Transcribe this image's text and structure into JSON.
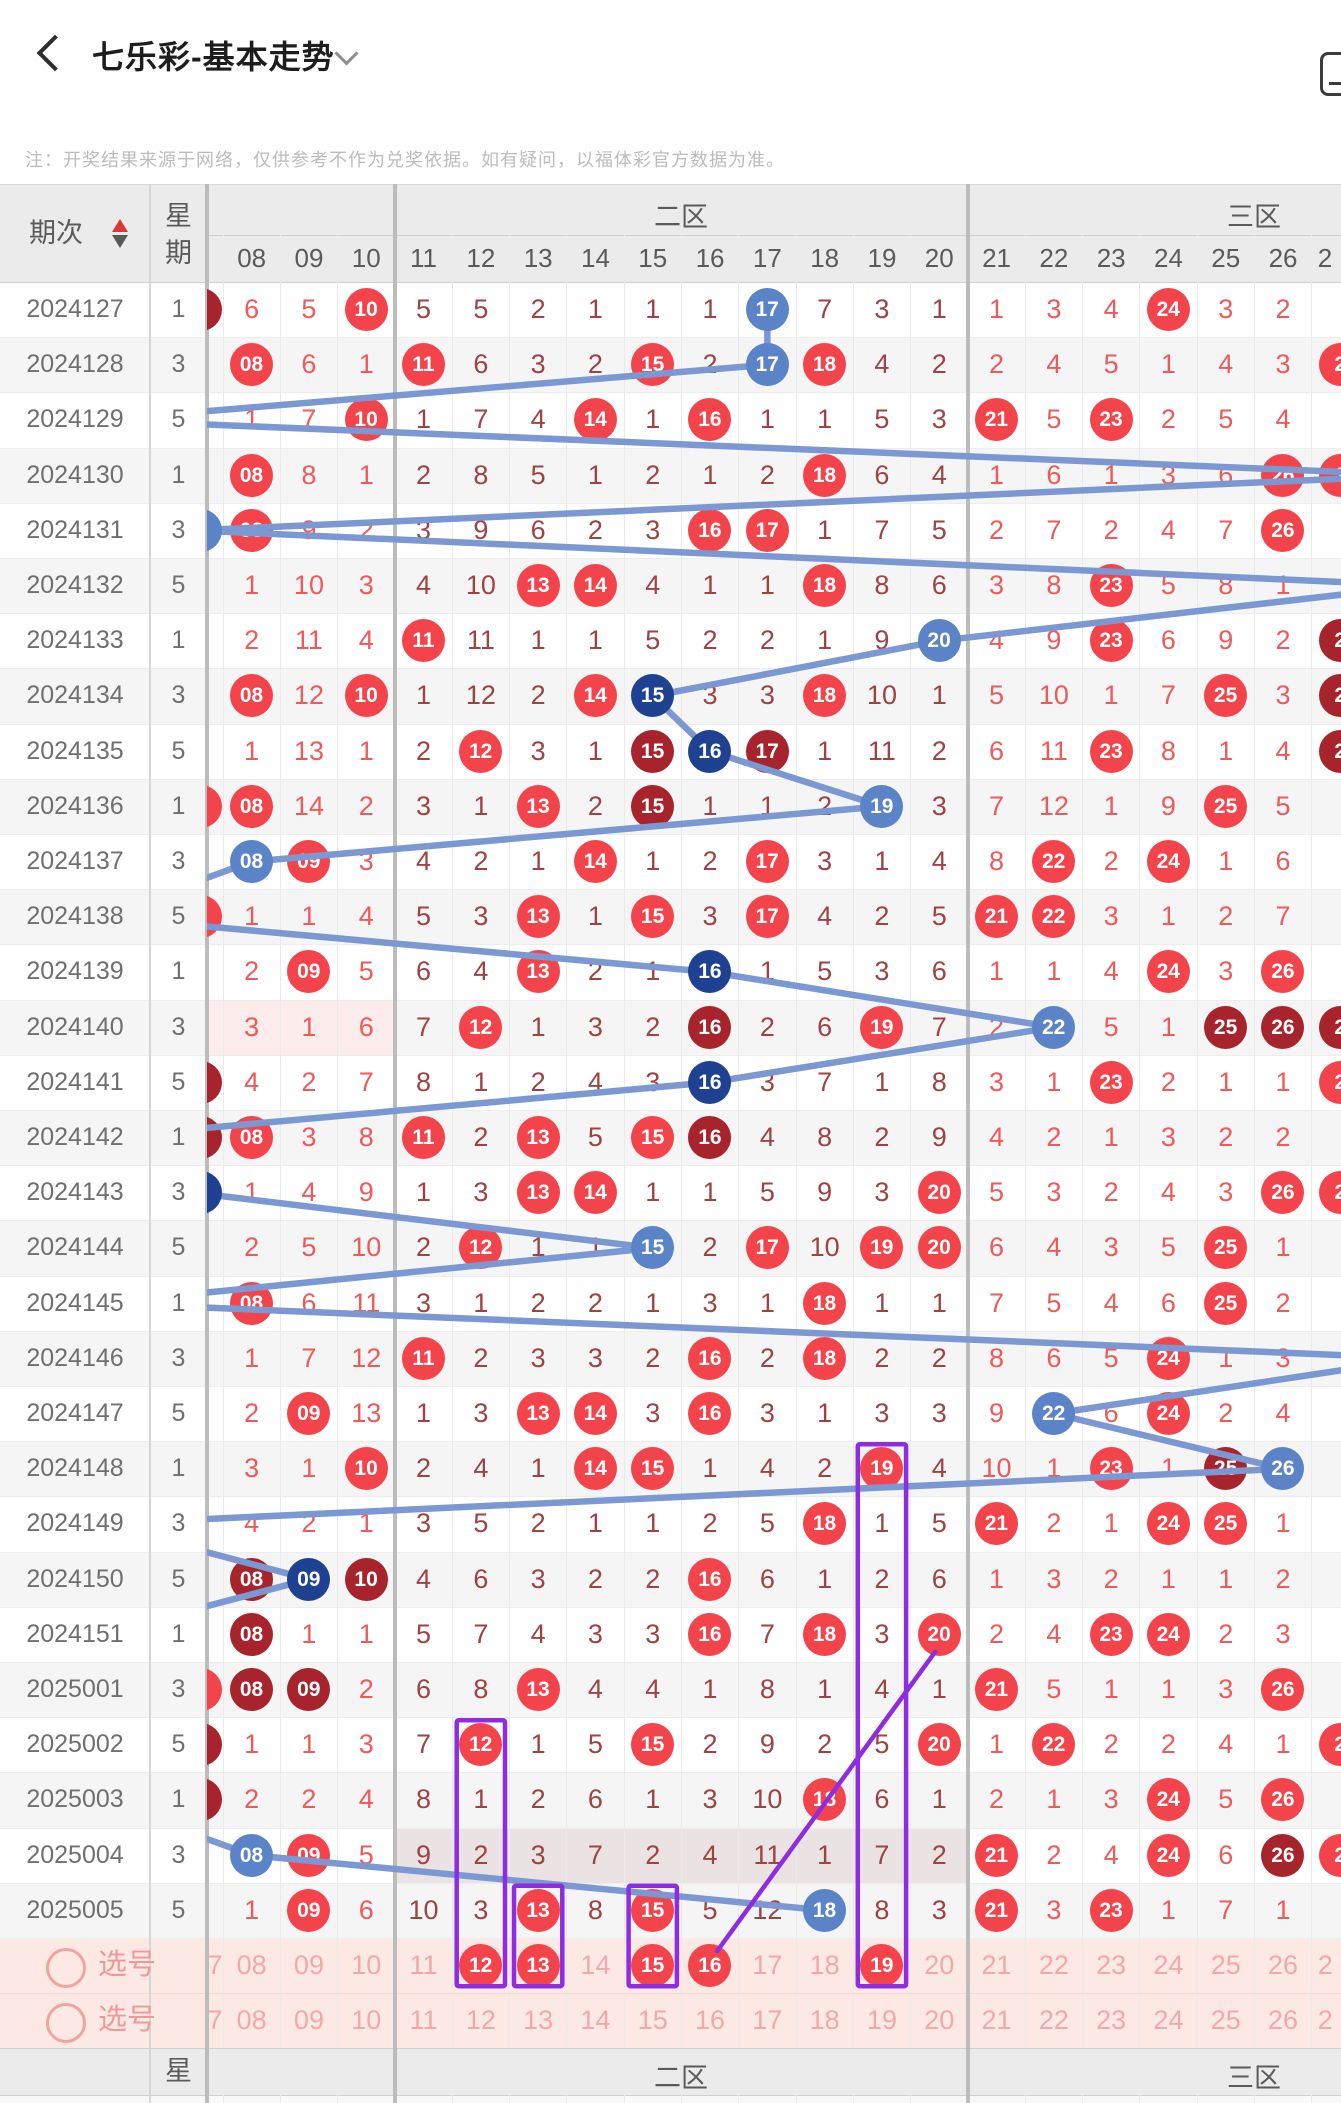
{
  "header": {
    "title": "七乐彩-基本走势",
    "back_icon": "chevron-left",
    "dropdown_icon": "chevron-down",
    "corner_icon": "panel-icon-clipped"
  },
  "note": "注：开奖结果来源于网络，仅供参考不作为兑奖依据。如有疑问，以福体彩官方数据为准。",
  "table": {
    "period_label": "期次",
    "week_label_top": "星",
    "week_label_bottom": "期",
    "zone2_label": "二区",
    "zone3_label": "三区",
    "columns": [
      "08",
      "09",
      "10",
      "11",
      "12",
      "13",
      "14",
      "15",
      "16",
      "17",
      "18",
      "19",
      "20",
      "21",
      "22",
      "23",
      "24",
      "25",
      "26"
    ],
    "clipped_column_label": "2",
    "clipped_left_pick_label": "7",
    "footer_partial_dash": "-",
    "rows": [
      {
        "p": "2024127",
        "w": "1",
        "l": "m",
        "r": "",
        "cells": [
          "6",
          "5",
          "r10",
          "5",
          "5",
          "2",
          "1",
          "1",
          "1",
          "b17",
          "7",
          "3",
          "1",
          "1",
          "3",
          "4",
          "r24",
          "3",
          "2"
        ]
      },
      {
        "p": "2024128",
        "w": "3",
        "l": "",
        "r": "r",
        "cells": [
          "r08",
          "6",
          "1",
          "r11",
          "6",
          "3",
          "2",
          "r15",
          "2",
          "b17",
          "r18",
          "4",
          "2",
          "2",
          "4",
          "5",
          "1",
          "4",
          "3"
        ]
      },
      {
        "p": "2024129",
        "w": "5",
        "l": "",
        "r": "",
        "cells": [
          "1",
          "7",
          "r10",
          "1",
          "7",
          "4",
          "r14",
          "1",
          "r16",
          "1",
          "1",
          "5",
          "3",
          "r21",
          "5",
          "r23",
          "2",
          "5",
          "4"
        ]
      },
      {
        "p": "2024130",
        "w": "1",
        "l": "",
        "r": "r",
        "cells": [
          "r08",
          "8",
          "1",
          "2",
          "8",
          "5",
          "1",
          "2",
          "1",
          "2",
          "r18",
          "6",
          "4",
          "1",
          "6",
          "1",
          "3",
          "6",
          "r26"
        ]
      },
      {
        "p": "2024131",
        "w": "3",
        "l": "b",
        "r": "",
        "cells": [
          "r08",
          "9",
          "2",
          "3",
          "9",
          "6",
          "2",
          "3",
          "r16",
          "r17",
          "1",
          "7",
          "5",
          "2",
          "7",
          "2",
          "4",
          "7",
          "r26"
        ]
      },
      {
        "p": "2024132",
        "w": "5",
        "l": "",
        "r": "",
        "cells": [
          "1",
          "10",
          "3",
          "4",
          "10",
          "r13",
          "r14",
          "4",
          "1",
          "1",
          "r18",
          "8",
          "6",
          "3",
          "8",
          "r23",
          "5",
          "8",
          "1"
        ]
      },
      {
        "p": "2024133",
        "w": "1",
        "l": "",
        "r": "m",
        "cells": [
          "2",
          "11",
          "4",
          "r11",
          "11",
          "1",
          "1",
          "5",
          "2",
          "2",
          "1",
          "9",
          "b20",
          "4",
          "9",
          "r23",
          "6",
          "9",
          "2"
        ]
      },
      {
        "p": "2024134",
        "w": "3",
        "l": "",
        "r": "m",
        "cells": [
          "r08",
          "12",
          "r10",
          "1",
          "12",
          "2",
          "r14",
          "n15",
          "3",
          "3",
          "r18",
          "10",
          "1",
          "5",
          "10",
          "1",
          "7",
          "r25",
          "3"
        ]
      },
      {
        "p": "2024135",
        "w": "5",
        "l": "",
        "r": "m",
        "cells": [
          "1",
          "13",
          "1",
          "2",
          "r12",
          "3",
          "1",
          "m15",
          "n16",
          "m17",
          "1",
          "11",
          "2",
          "6",
          "11",
          "r23",
          "8",
          "1",
          "4"
        ]
      },
      {
        "p": "2024136",
        "w": "1",
        "l": "r",
        "r": "",
        "cells": [
          "r08",
          "14",
          "2",
          "3",
          "1",
          "r13",
          "2",
          "m15",
          "1",
          "1",
          "2",
          "b19",
          "3",
          "7",
          "12",
          "1",
          "9",
          "r25",
          "5"
        ]
      },
      {
        "p": "2024137",
        "w": "3",
        "l": "",
        "r": "",
        "cells": [
          "b08",
          "r09",
          "3",
          "4",
          "2",
          "1",
          "r14",
          "1",
          "2",
          "r17",
          "3",
          "1",
          "4",
          "8",
          "r22",
          "2",
          "r24",
          "1",
          "6"
        ]
      },
      {
        "p": "2024138",
        "w": "5",
        "l": "r",
        "r": "",
        "cells": [
          "1",
          "1",
          "4",
          "5",
          "3",
          "r13",
          "1",
          "r15",
          "3",
          "r17",
          "4",
          "2",
          "5",
          "r21",
          "r22",
          "3",
          "1",
          "2",
          "7"
        ]
      },
      {
        "p": "2024139",
        "w": "1",
        "l": "",
        "r": "",
        "cells": [
          "2",
          "r09",
          "5",
          "6",
          "4",
          "r13",
          "2",
          "1",
          "n16",
          "1",
          "5",
          "3",
          "6",
          "1",
          "1",
          "4",
          "r24",
          "3",
          "r26"
        ]
      },
      {
        "p": "2024140",
        "w": "3",
        "l": "",
        "r": "m",
        "hl": "z1",
        "cells": [
          "3",
          "1",
          "6",
          "7",
          "r12",
          "1",
          "3",
          "2",
          "m16",
          "2",
          "6",
          "r19",
          "7",
          "2",
          "b22",
          "5",
          "1",
          "m25",
          "m26"
        ]
      },
      {
        "p": "2024141",
        "w": "5",
        "l": "m",
        "r": "r",
        "cells": [
          "4",
          "2",
          "7",
          "8",
          "1",
          "2",
          "4",
          "3",
          "n16",
          "3",
          "7",
          "1",
          "8",
          "3",
          "1",
          "r23",
          "2",
          "1",
          "1"
        ]
      },
      {
        "p": "2024142",
        "w": "1",
        "l": "m",
        "r": "",
        "cells": [
          "r08",
          "3",
          "8",
          "r11",
          "2",
          "r13",
          "5",
          "r15",
          "m16",
          "4",
          "8",
          "2",
          "9",
          "4",
          "2",
          "1",
          "3",
          "2",
          "2"
        ]
      },
      {
        "p": "2024143",
        "w": "3",
        "l": "n",
        "r": "r",
        "cells": [
          "1",
          "4",
          "9",
          "1",
          "3",
          "r13",
          "r14",
          "1",
          "1",
          "5",
          "9",
          "3",
          "r20",
          "5",
          "3",
          "2",
          "4",
          "3",
          "r26"
        ]
      },
      {
        "p": "2024144",
        "w": "5",
        "l": "",
        "r": "",
        "cells": [
          "2",
          "5",
          "10",
          "2",
          "r12",
          "1",
          "1",
          "b15",
          "2",
          "r17",
          "10",
          "r19",
          "r20",
          "6",
          "4",
          "3",
          "5",
          "r25",
          "1"
        ]
      },
      {
        "p": "2024145",
        "w": "1",
        "l": "",
        "r": "",
        "cells": [
          "r08",
          "6",
          "11",
          "3",
          "1",
          "2",
          "2",
          "1",
          "3",
          "1",
          "r18",
          "1",
          "1",
          "7",
          "5",
          "4",
          "6",
          "r25",
          "2"
        ]
      },
      {
        "p": "2024146",
        "w": "3",
        "l": "",
        "r": "",
        "cells": [
          "1",
          "7",
          "12",
          "r11",
          "2",
          "3",
          "3",
          "2",
          "r16",
          "2",
          "r18",
          "2",
          "2",
          "8",
          "6",
          "5",
          "r24",
          "1",
          "3"
        ]
      },
      {
        "p": "2024147",
        "w": "5",
        "l": "",
        "r": "",
        "cells": [
          "2",
          "r09",
          "13",
          "1",
          "3",
          "r13",
          "r14",
          "3",
          "r16",
          "3",
          "1",
          "3",
          "3",
          "9",
          "b22",
          "6",
          "r24",
          "2",
          "4"
        ]
      },
      {
        "p": "2024148",
        "w": "1",
        "l": "",
        "r": "",
        "cells": [
          "3",
          "1",
          "r10",
          "2",
          "4",
          "1",
          "r14",
          "r15",
          "1",
          "4",
          "2",
          "r19",
          "4",
          "10",
          "1",
          "r23",
          "1",
          "m25",
          "b26"
        ]
      },
      {
        "p": "2024149",
        "w": "3",
        "l": "",
        "r": "",
        "cells": [
          "4",
          "2",
          "1",
          "3",
          "5",
          "2",
          "1",
          "1",
          "2",
          "5",
          "r18",
          "1",
          "5",
          "r21",
          "2",
          "1",
          "r24",
          "r25",
          "1"
        ]
      },
      {
        "p": "2024150",
        "w": "5",
        "l": "",
        "r": "",
        "cells": [
          "m08",
          "n09",
          "m10",
          "4",
          "6",
          "3",
          "2",
          "2",
          "r16",
          "6",
          "1",
          "2",
          "6",
          "1",
          "3",
          "2",
          "1",
          "1",
          "2"
        ]
      },
      {
        "p": "2024151",
        "w": "1",
        "l": "",
        "r": "",
        "cells": [
          "m08",
          "1",
          "1",
          "5",
          "7",
          "4",
          "3",
          "3",
          "r16",
          "7",
          "r18",
          "3",
          "r20",
          "2",
          "4",
          "r23",
          "r24",
          "2",
          "3"
        ]
      },
      {
        "p": "2025001",
        "w": "3",
        "l": "r",
        "r": "",
        "cells": [
          "m08",
          "m09",
          "2",
          "6",
          "8",
          "r13",
          "4",
          "4",
          "1",
          "8",
          "1",
          "4",
          "1",
          "r21",
          "5",
          "1",
          "1",
          "3",
          "r26"
        ]
      },
      {
        "p": "2025002",
        "w": "5",
        "l": "m",
        "r": "r",
        "cells": [
          "1",
          "1",
          "3",
          "7",
          "r12",
          "1",
          "5",
          "r15",
          "2",
          "9",
          "2",
          "5",
          "r20",
          "1",
          "r22",
          "2",
          "2",
          "4",
          "1"
        ]
      },
      {
        "p": "2025003",
        "w": "1",
        "l": "m",
        "r": "",
        "cells": [
          "2",
          "2",
          "4",
          "8",
          "1",
          "2",
          "6",
          "1",
          "3",
          "10",
          "r18",
          "6",
          "1",
          "2",
          "1",
          "3",
          "r24",
          "5",
          "r26"
        ]
      },
      {
        "p": "2025004",
        "w": "3",
        "l": "",
        "r": "r",
        "hl": "z2",
        "cells": [
          "b08",
          "r09",
          "5",
          "9",
          "2",
          "3",
          "7",
          "2",
          "4",
          "11",
          "1",
          "7",
          "2",
          "r21",
          "2",
          "4",
          "r24",
          "6",
          "m26"
        ]
      },
      {
        "p": "2025005",
        "w": "5",
        "l": "",
        "r": "",
        "cells": [
          "1",
          "r09",
          "6",
          "10",
          "3",
          "r13",
          "8",
          "r15",
          "5",
          "12",
          "b18",
          "8",
          "3",
          "r21",
          "3",
          "r23",
          "1",
          "7",
          "1"
        ]
      }
    ],
    "pick_rows": [
      {
        "label": "选号",
        "selected": [
          "12",
          "13",
          "15",
          "16",
          "19"
        ]
      },
      {
        "label": "选号",
        "selected": []
      }
    ]
  },
  "annotations": {
    "special_number_path": [
      "17",
      "17",
      "L",
      "R",
      "07",
      "R",
      "20",
      "15",
      "16",
      "19",
      "08",
      "L",
      "16",
      "22",
      "16",
      "L",
      "07",
      "15",
      "L",
      "R",
      "22",
      "26",
      "L",
      "09",
      "L",
      "L",
      "L",
      "L",
      "08",
      "18"
    ],
    "purple_boxes": [
      {
        "col": "19",
        "from_row": 21,
        "to_row": 30
      },
      {
        "col": "12",
        "from_row": 26,
        "to_row": 30
      },
      {
        "col": "13",
        "from_row": 29,
        "to_row": 30
      },
      {
        "col": "15",
        "from_row": 29,
        "to_row": 30
      }
    ],
    "purple_diagonal": {
      "from_row": 30,
      "from_col": "16",
      "to_row": 24,
      "to_col": "20"
    }
  },
  "colors": {
    "red_ball": "#f3444b",
    "maroon_ball": "#a8242c",
    "blue_ball": "#5b83c8",
    "navy_ball": "#1e4191",
    "zone13_text": "#ee5a5a",
    "zone2_text": "#9e4343",
    "pick_text": "#f2a8a8",
    "trend_line": "#7b98d2",
    "annotation_purple": "#8e2ce0",
    "pick_row_bg": "#fde9e4",
    "zone1_highlight": "#fdecec",
    "zone2_highlight": "#ebe3e3",
    "header_bg": "#ebebeb",
    "zebra_bg": "#f5f5f5"
  }
}
